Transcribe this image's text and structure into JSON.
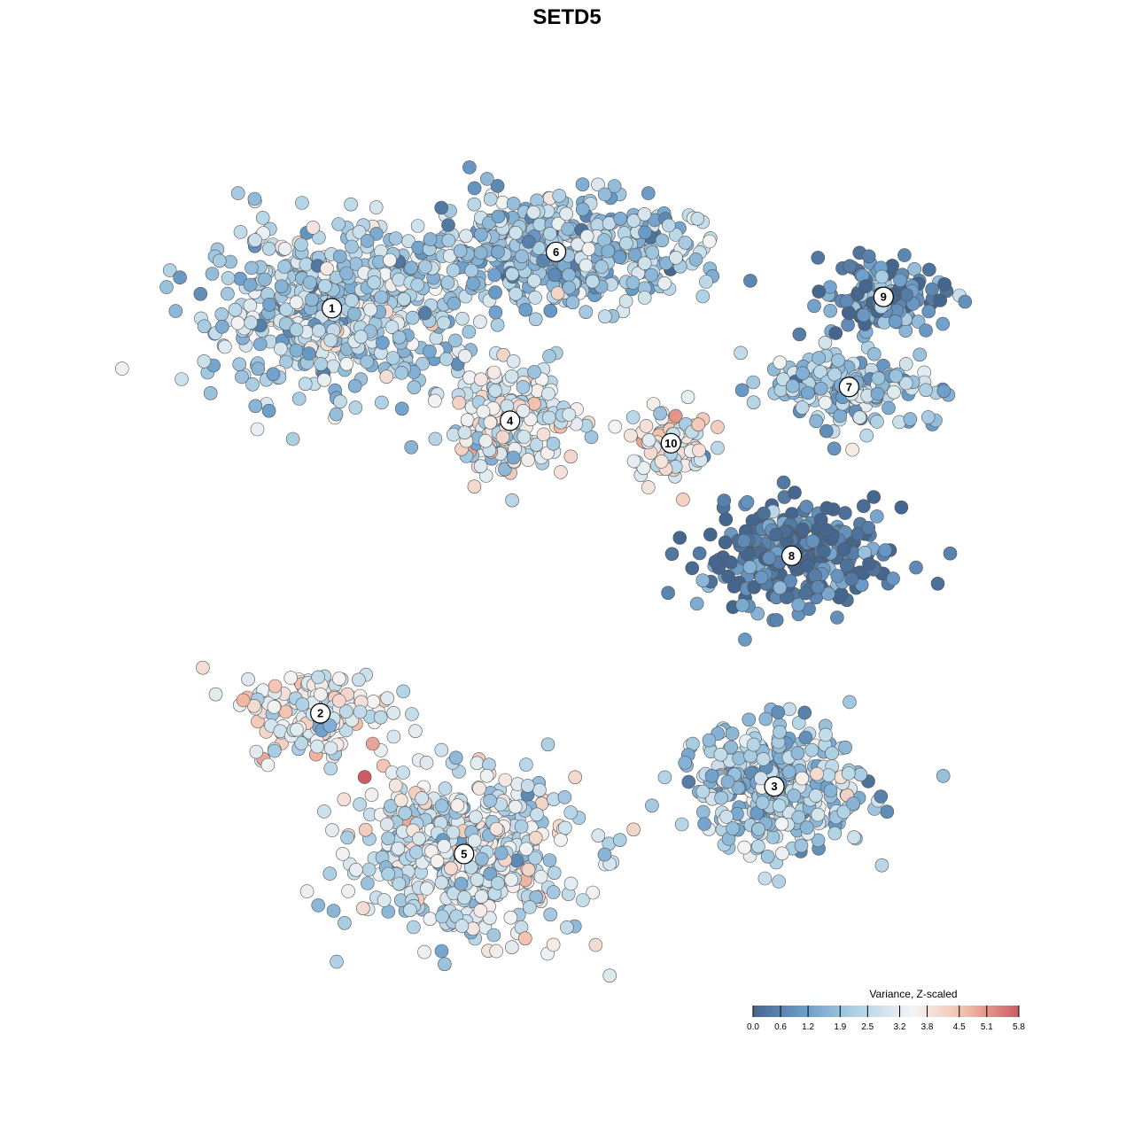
{
  "chart_data": {
    "type": "scatter",
    "title": "SETD5",
    "xlabel": "",
    "ylabel": "",
    "grid": false,
    "legend_position": "bottom-right",
    "color_scale": {
      "title": "Variance, Z-scaled",
      "min": 0.0,
      "max": 5.8,
      "ticks": [
        "0.0",
        "0.6",
        "1.2",
        "1.9",
        "2.5",
        "3.2",
        "3.8",
        "4.5",
        "5.1",
        "5.8"
      ],
      "colors": [
        "#45678f",
        "#6d9fcb",
        "#b3d4e6",
        "#f4f4f4",
        "#f3bda7",
        "#cd5b63"
      ]
    },
    "clusters": [
      {
        "label": "1",
        "x": -38,
        "y": 52,
        "spread_x": 20,
        "spread_y": 13,
        "value": 2.3
      },
      {
        "label": "2",
        "x": -40,
        "y": -20,
        "spread_x": 11,
        "spread_y": 7,
        "value": 3.3
      },
      {
        "label": "3",
        "x": 39,
        "y": -33,
        "spread_x": 15,
        "spread_y": 10,
        "value": 2.1
      },
      {
        "label": "4",
        "x": -7,
        "y": 32,
        "spread_x": 10,
        "spread_y": 9,
        "value": 3.1
      },
      {
        "label": "5",
        "x": -15,
        "y": -45,
        "spread_x": 18,
        "spread_y": 13,
        "value": 2.8
      },
      {
        "label": "6",
        "x": 1,
        "y": 62,
        "spread_x": 22,
        "spread_y": 9,
        "value": 2.0
      },
      {
        "label": "7",
        "x": 52,
        "y": 38,
        "spread_x": 14,
        "spread_y": 6,
        "value": 2.1
      },
      {
        "label": "8",
        "x": 42,
        "y": 8,
        "spread_x": 14,
        "spread_y": 9,
        "value": 0.4
      },
      {
        "label": "9",
        "x": 58,
        "y": 54,
        "spread_x": 10,
        "spread_y": 6,
        "value": 0.9
      },
      {
        "label": "10",
        "x": 21,
        "y": 28,
        "spread_x": 6,
        "spread_y": 6,
        "value": 3.3
      }
    ],
    "xlim": [
      -68,
      80
    ],
    "ylim": [
      -68,
      80
    ]
  }
}
